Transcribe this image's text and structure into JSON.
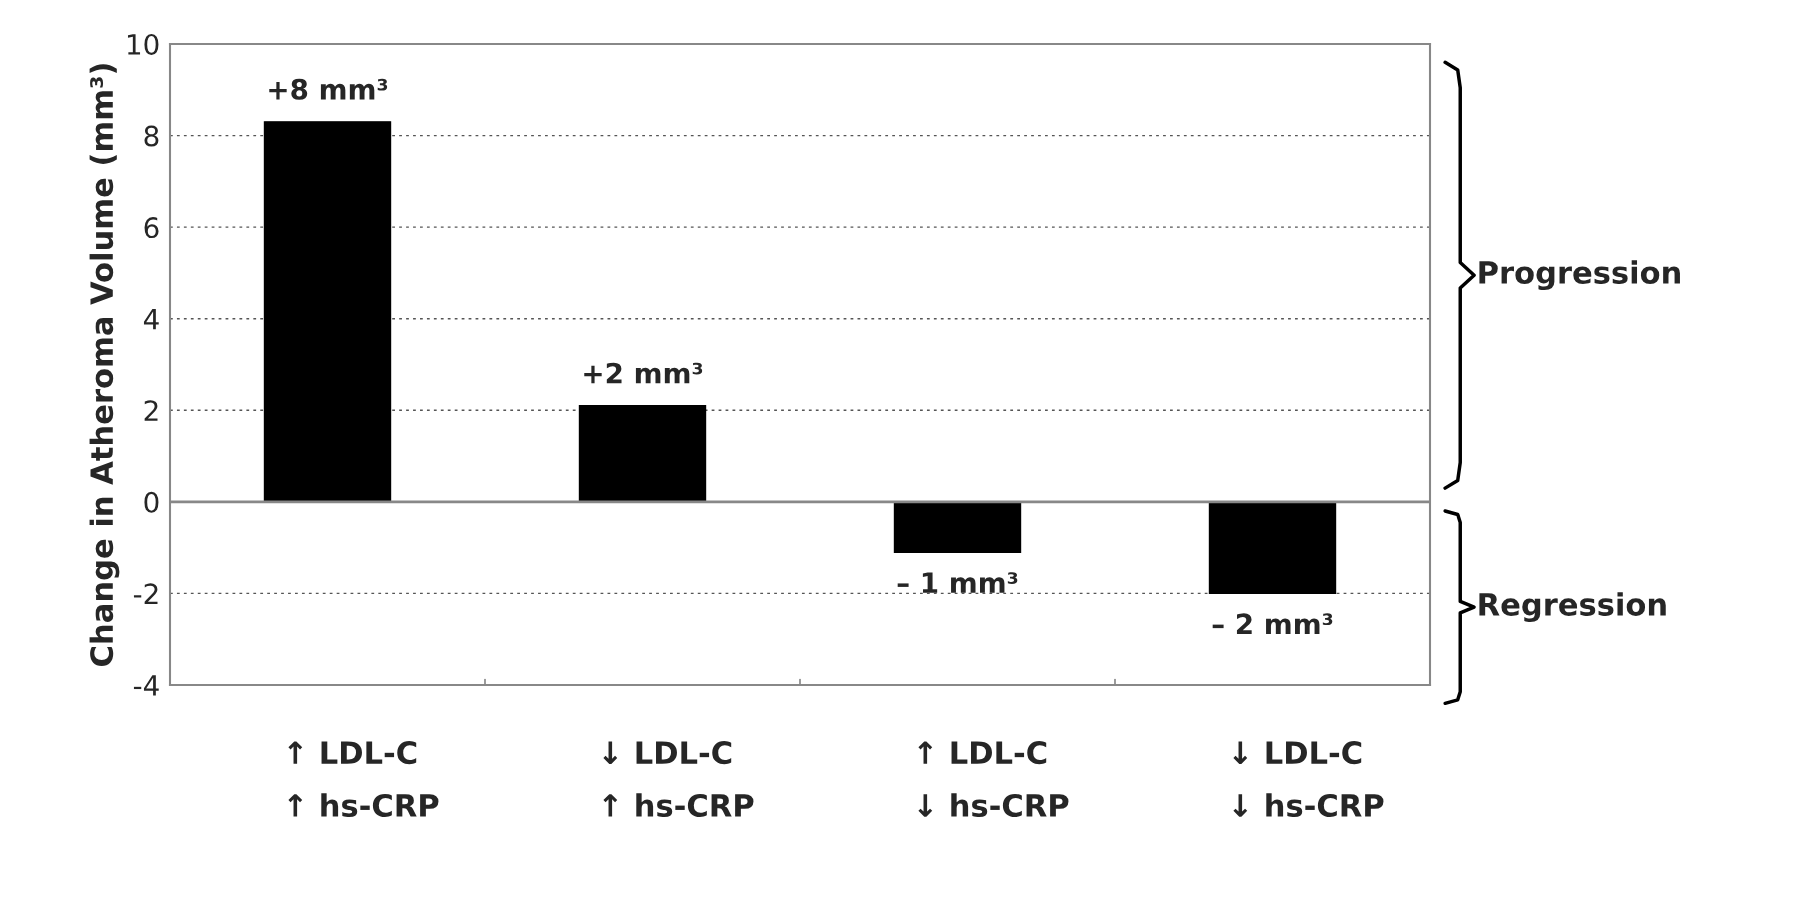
{
  "chart_data": {
    "type": "bar",
    "ylabel": "Change in Atheroma Volume (mm³)",
    "categories": [
      "↑ LDL-C\n↑ hs-CRP",
      "↓ LDL-C\n↑ hs-CRP",
      "↑ LDL-C\n↓ hs-CRP",
      "↓ LDL-C\n↓ hs-CRP"
    ],
    "values": [
      8.3,
      2.1,
      -1.1,
      -2.0
    ],
    "value_labels": [
      "+8 mm³",
      "+2 mm³",
      "– 1 mm³",
      "– 2 mm³"
    ],
    "color": "#000000",
    "ylim": [
      -4,
      10
    ],
    "yticks": [
      -4,
      -2,
      0,
      2,
      4,
      6,
      8,
      10
    ],
    "grid": "y",
    "annotations": [
      "Progression",
      "Regression"
    ]
  }
}
